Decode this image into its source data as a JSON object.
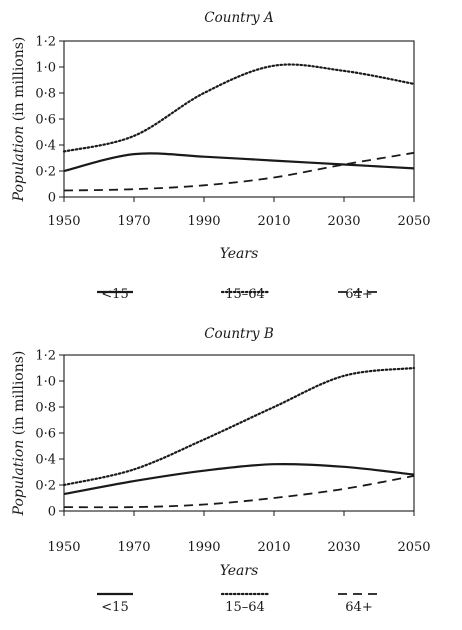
{
  "chart_data": [
    {
      "type": "line",
      "title": "Country A",
      "xlabel": "Years",
      "ylabel_prefix": "Population",
      "ylabel_suffix": " (in millions)",
      "xlim": [
        1950,
        2050
      ],
      "ylim": [
        0,
        1.2
      ],
      "xticks": [
        "1950",
        "1970",
        "1990",
        "2010",
        "2030",
        "2050"
      ],
      "yticks": [
        "0",
        "0·2",
        "0·4",
        "0·6",
        "0·8",
        "1·0",
        "1·2"
      ],
      "grid": false,
      "legend_position": "bottom",
      "series": [
        {
          "name": "<15",
          "style": "solid",
          "points": [
            [
              1950,
              0.2
            ],
            [
              1970,
              0.33
            ],
            [
              1990,
              0.31
            ],
            [
              2010,
              0.28
            ],
            [
              2030,
              0.25
            ],
            [
              2050,
              0.22
            ]
          ]
        },
        {
          "name": "15–64",
          "style": "dotted",
          "points": [
            [
              1950,
              0.35
            ],
            [
              1970,
              0.47
            ],
            [
              1990,
              0.8
            ],
            [
              2010,
              1.01
            ],
            [
              2030,
              0.97
            ],
            [
              2050,
              0.87
            ]
          ]
        },
        {
          "name": "64+",
          "style": "dashed",
          "points": [
            [
              1950,
              0.05
            ],
            [
              1970,
              0.06
            ],
            [
              1990,
              0.09
            ],
            [
              2010,
              0.15
            ],
            [
              2030,
              0.25
            ],
            [
              2050,
              0.34
            ]
          ]
        }
      ]
    },
    {
      "type": "line",
      "title": "Country B",
      "xlabel": "Years",
      "ylabel_prefix": "Population",
      "ylabel_suffix": " (in millions)",
      "xlim": [
        1950,
        2050
      ],
      "ylim": [
        0,
        1.2
      ],
      "xticks": [
        "1950",
        "1970",
        "1990",
        "2010",
        "2030",
        "2050"
      ],
      "yticks": [
        "0",
        "0·2",
        "0·4",
        "0·6",
        "0·8",
        "1·0",
        "1·2"
      ],
      "grid": false,
      "legend_position": "bottom",
      "series": [
        {
          "name": "<15",
          "style": "solid",
          "points": [
            [
              1950,
              0.13
            ],
            [
              1970,
              0.23
            ],
            [
              1990,
              0.31
            ],
            [
              2010,
              0.36
            ],
            [
              2030,
              0.34
            ],
            [
              2050,
              0.28
            ]
          ]
        },
        {
          "name": "15–64",
          "style": "dotted",
          "points": [
            [
              1950,
              0.2
            ],
            [
              1970,
              0.32
            ],
            [
              1990,
              0.55
            ],
            [
              2010,
              0.8
            ],
            [
              2030,
              1.04
            ],
            [
              2050,
              1.1
            ]
          ]
        },
        {
          "name": "64+",
          "style": "dashed",
          "points": [
            [
              1950,
              0.03
            ],
            [
              1970,
              0.03
            ],
            [
              1990,
              0.05
            ],
            [
              2010,
              0.1
            ],
            [
              2030,
              0.17
            ],
            [
              2050,
              0.27
            ]
          ]
        }
      ]
    }
  ]
}
